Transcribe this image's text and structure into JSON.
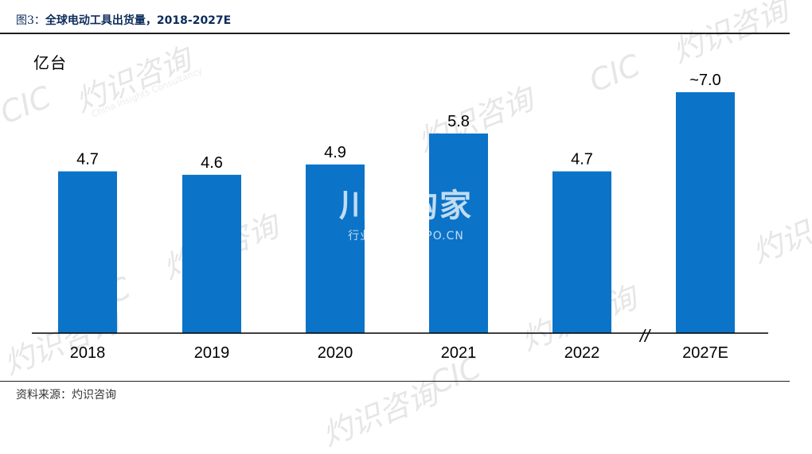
{
  "header": {
    "fig_num": "图3：",
    "title": "全球电动工具出货量，2018-2027E"
  },
  "unit_label": "亿台",
  "source": "资料来源：灼识咨询",
  "axis_break": "//",
  "watermark": {
    "logo": "CIC",
    "name_cn": "灼识咨询",
    "name_en": "China Insights Consultancy",
    "center_brand": "川并购家",
    "center_sub": "行业报告 IPOIPO.CN"
  },
  "chart_data": {
    "type": "bar",
    "title": "全球电动工具出货量，2018-2027E",
    "xlabel": "",
    "ylabel": "亿台",
    "categories": [
      "2018",
      "2019",
      "2020",
      "2021",
      "2022",
      "2027E"
    ],
    "values": [
      4.7,
      4.6,
      4.9,
      5.8,
      4.7,
      7.0
    ],
    "data_labels": [
      "4.7",
      "4.6",
      "4.9",
      "5.8",
      "4.7",
      "~7.0"
    ],
    "ylim": [
      0,
      8.2
    ],
    "color": "#0b73c8",
    "grid": false,
    "legend": "none"
  }
}
